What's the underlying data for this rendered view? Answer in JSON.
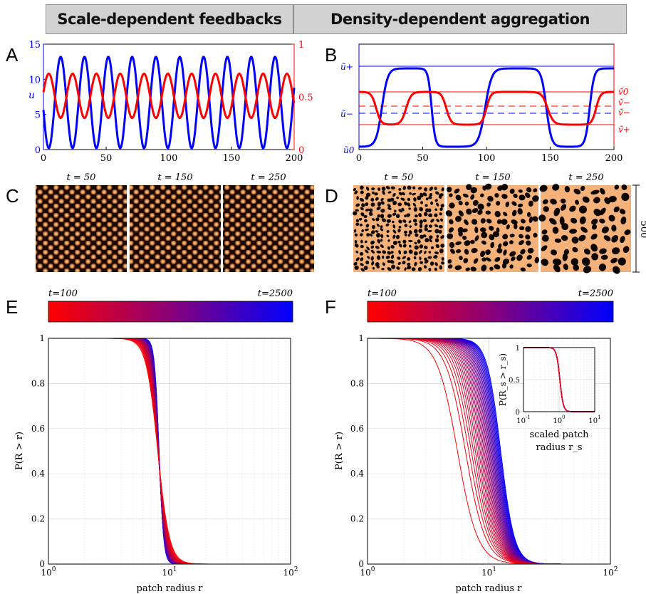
{
  "banners": {
    "left": "Scale-dependent feedbacks",
    "right": "Density-dependent aggregation"
  },
  "panel_labels": {
    "A": "A",
    "B": "B",
    "C": "C",
    "D": "D",
    "E": "E",
    "F": "F"
  },
  "snapshots": {
    "labels": [
      "t = 50",
      "t = 150",
      "t = 250"
    ],
    "scale_bar": "500"
  },
  "colorbars": {
    "start": "t=100",
    "end": "t=2500",
    "color_start": "#ff0000",
    "color_end": "#0000ff"
  },
  "colors": {
    "u": "#0000ff",
    "v": "#ff0000",
    "spots_dark": "#1a0a02",
    "spots_light": "#f4b27a"
  },
  "chart_data": [
    {
      "id": "A",
      "type": "line",
      "x": [
        0,
        200
      ],
      "xticks": [
        0,
        50,
        100,
        150,
        200
      ],
      "ylabel_left": "u",
      "yticks_left": [
        0,
        5,
        10,
        15
      ],
      "ylim_left": [
        0,
        15
      ],
      "yticks_right": [
        0,
        0.5,
        1
      ],
      "ylim_right": [
        0,
        1
      ],
      "series": [
        {
          "values_desc": "u oscillation",
          "period": 19,
          "min": 0.2,
          "max": 13.2,
          "phase": 9
        },
        {
          "values_desc": "v oscillation",
          "period": 19,
          "min": 0.3,
          "max": 0.72,
          "phase": 18.5
        }
      ]
    },
    {
      "id": "B",
      "type": "line",
      "x": [
        0,
        200
      ],
      "xticks": [
        0,
        50,
        100,
        150,
        200
      ],
      "yticks_left": [
        "ũ+",
        "ũ−",
        "ũ0"
      ],
      "yticks_right": [
        "ṽ0",
        "ṽ−",
        "ṽ−",
        "ṽ+"
      ],
      "u_transitions": [
        [
          10,
          26
        ],
        [
          52,
          62
        ],
        [
          90,
          108
        ],
        [
          140,
          154
        ],
        [
          175,
          187
        ]
      ],
      "v_transitions": [
        [
          7,
          20
        ],
        [
          30,
          44
        ],
        [
          62,
          75
        ],
        [
          94,
          106
        ],
        [
          140,
          156
        ],
        [
          180,
          192
        ]
      ]
    },
    {
      "id": "E",
      "type": "line",
      "xscale": "log",
      "xlim": [
        1,
        100
      ],
      "ylim": [
        0,
        1
      ],
      "xticks": [
        "10^0",
        "10^1",
        "10^2"
      ],
      "yticks": [
        0,
        0.2,
        0.4,
        0.6,
        0.8,
        1
      ],
      "xlabel": "patch radius r",
      "ylabel": "P(R > r)",
      "curves": 30,
      "median_range": [
        8.0,
        8.2
      ]
    },
    {
      "id": "F",
      "type": "line",
      "xscale": "log",
      "xlim": [
        1,
        100
      ],
      "ylim": [
        0,
        1
      ],
      "xticks": [
        "10^0",
        "10^1",
        "10^2"
      ],
      "yticks": [
        0,
        0.2,
        0.4,
        0.6,
        0.8,
        1
      ],
      "xlabel": "patch radius r",
      "ylabel": "P(R > r)",
      "curves": 30,
      "median_range": [
        5.5,
        12.5
      ],
      "inset": {
        "xlabel": "scaled patch",
        "xlabel2": "radius r_s",
        "ylabel": "P(R_s > r_s)",
        "xticks": [
          "10^-1",
          "10^0",
          "10^1"
        ],
        "yticks": [
          0,
          0.5,
          1
        ]
      }
    }
  ]
}
